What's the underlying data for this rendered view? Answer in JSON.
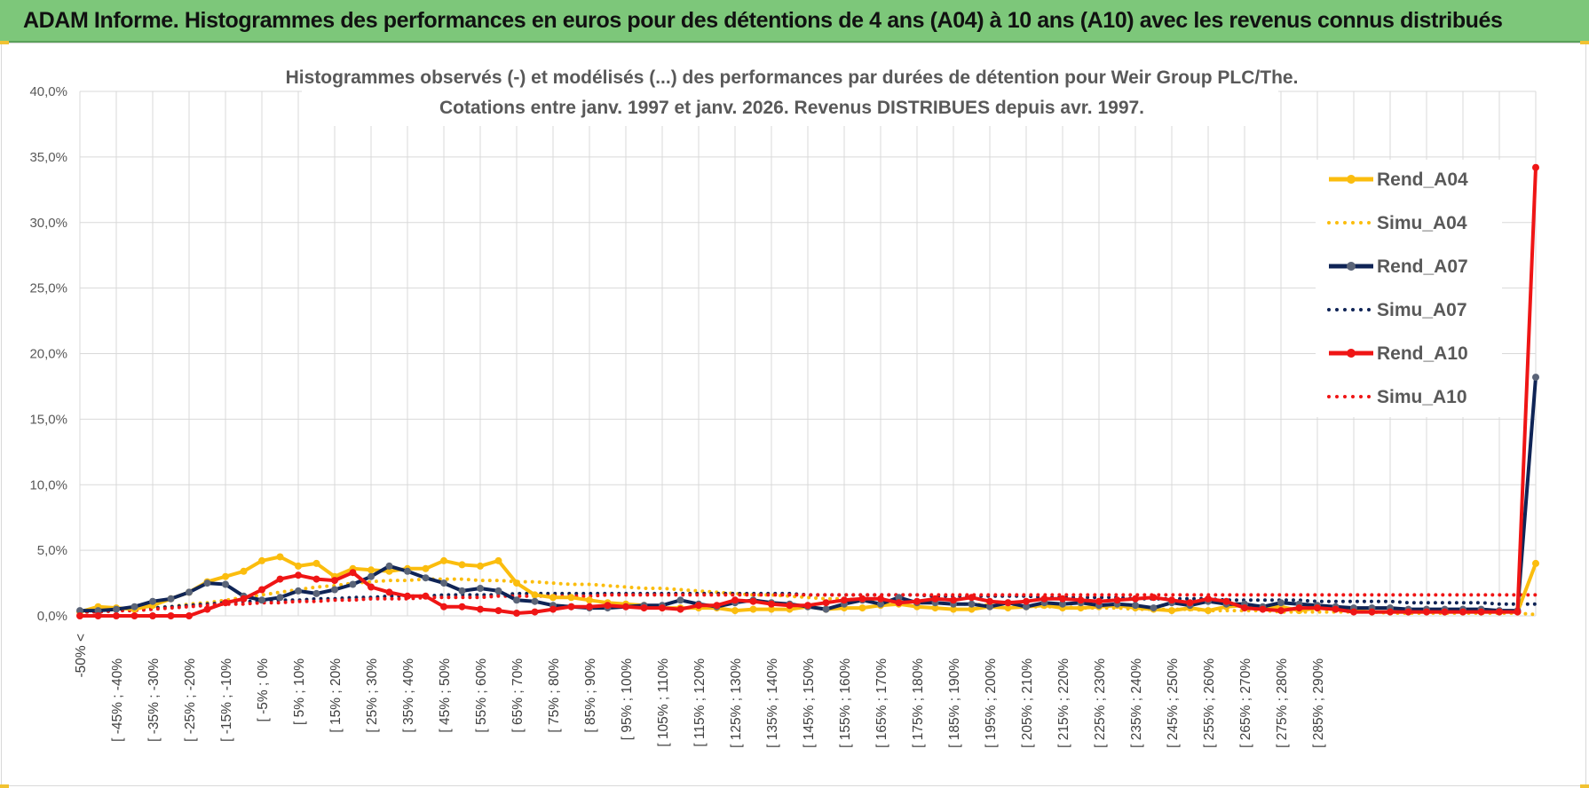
{
  "header": {
    "title": "ADAM Informe. Histogrammes des performances en euros pour des détentions de 4 ans (A04) à 10 ans (A10) avec les revenus connus distribués"
  },
  "colors": {
    "banner_bg": "#7dc77a",
    "a04": "#fbbd0e",
    "a07": "#0f2456",
    "a07_marker": "#5a6478",
    "a10": "#ef1515"
  },
  "chart_data": {
    "type": "line",
    "title_line1": "Histogrammes observés (-) et modélisés (...) des performances par durées de détention pour Weir Group PLC/The.",
    "title_line2": "Cotations entre janv. 1997 et janv. 2026. Revenus DISTRIBUES depuis avr. 1997.",
    "ylim": [
      0,
      40
    ],
    "y_ticks": [
      "0,0%",
      "5,0%",
      "10,0%",
      "15,0%",
      "20,0%",
      "25,0%",
      "30,0%",
      "35,0%",
      "40,0%"
    ],
    "grid": true,
    "legend_position": "right",
    "x_labels": [
      "-50% <",
      "[ -45% ; -40%",
      "[ -35% ; -30%",
      "[ -25% ; -20%",
      "[ -15% ; -10%",
      "[ -5% ; 0%",
      "[ 5% ; 10%",
      "[ 15% ; 20%",
      "[ 25% ; 30%",
      "[ 35% ; 40%",
      "[ 45% ; 50%",
      "[ 55% ; 60%",
      "[ 65% ; 70%",
      "[ 75% ; 80%",
      "[ 85% ; 90%",
      "[ 95% ; 100%",
      "[ 105% ; 110%",
      "[ 115% ; 120%",
      "[ 125% ; 130%",
      "[ 135% ; 140%",
      "[ 145% ; 150%",
      "[ 155% ; 160%",
      "[ 165% ; 170%",
      "[ 175% ; 180%",
      "[ 185% ; 190%",
      "[ 195% ; 200%",
      "[ 205% ; 210%",
      "[ 215% ; 220%",
      "[ 225% ; 230%",
      "[ 235% ; 240%",
      "[ 245% ; 250%",
      "[ 255% ; 260%",
      "[ 265% ; 270%",
      "[ 275% ; 280%",
      "[ 285% ; 290%"
    ],
    "series": [
      {
        "name": "Rend_A04",
        "style": "solid",
        "color": "#fbbd0e",
        "values": [
          0.3,
          0.7,
          0.6,
          0.5,
          0.8,
          1.3,
          1.8,
          2.6,
          3.0,
          3.4,
          4.2,
          4.5,
          3.8,
          4.0,
          3.0,
          3.6,
          3.5,
          3.4,
          3.6,
          3.6,
          4.2,
          3.9,
          3.8,
          4.2,
          2.5,
          1.6,
          1.4,
          1.4,
          1.2,
          1.0,
          0.9,
          0.8,
          0.6,
          0.6,
          0.6,
          0.6,
          0.4,
          0.5,
          0.5,
          0.5,
          0.7,
          0.5,
          0.6,
          0.6,
          0.8,
          0.9,
          0.7,
          0.6,
          0.5,
          0.5,
          0.7,
          0.6,
          0.7,
          0.8,
          0.6,
          0.6,
          0.7,
          0.8,
          0.6,
          0.5,
          0.4,
          0.6,
          0.4,
          0.7,
          0.8,
          0.6,
          0.7,
          0.4,
          0.6,
          0.5,
          0.4,
          0.3,
          0.3,
          0.3,
          0.3,
          0.3,
          0.3,
          0.3,
          0.3,
          0.3,
          4.0
        ]
      },
      {
        "name": "Simu_A04",
        "style": "dotted",
        "color": "#fbbd0e",
        "values": [
          0.3,
          0.3,
          0.4,
          0.5,
          0.6,
          0.7,
          0.9,
          1.0,
          1.2,
          1.4,
          1.6,
          1.8,
          2.0,
          2.2,
          2.3,
          2.5,
          2.6,
          2.7,
          2.7,
          2.8,
          2.8,
          2.8,
          2.7,
          2.7,
          2.6,
          2.6,
          2.5,
          2.4,
          2.4,
          2.3,
          2.2,
          2.1,
          2.1,
          2.0,
          1.9,
          1.8,
          1.7,
          1.6,
          1.6,
          1.5,
          1.4,
          1.3,
          1.3,
          1.2,
          1.1,
          1.1,
          1.0,
          1.0,
          0.9,
          0.9,
          0.8,
          0.8,
          0.7,
          0.7,
          0.7,
          0.6,
          0.6,
          0.6,
          0.5,
          0.5,
          0.5,
          0.5,
          0.4,
          0.4,
          0.4,
          0.4,
          0.3,
          0.3,
          0.3,
          0.3,
          0.3,
          0.3,
          0.2,
          0.2,
          0.2,
          0.2,
          0.2,
          0.2,
          0.2,
          0.2,
          0.1
        ]
      },
      {
        "name": "Rend_A07",
        "style": "solid",
        "color": "#0f2456",
        "values": [
          0.4,
          0.4,
          0.5,
          0.7,
          1.1,
          1.3,
          1.8,
          2.5,
          2.4,
          1.5,
          1.2,
          1.4,
          1.9,
          1.7,
          2.0,
          2.4,
          3.0,
          3.8,
          3.4,
          2.9,
          2.5,
          1.9,
          2.1,
          1.9,
          1.2,
          1.1,
          0.8,
          0.7,
          0.6,
          0.6,
          0.7,
          0.8,
          0.8,
          1.2,
          0.9,
          0.7,
          1.0,
          1.2,
          1.0,
          0.9,
          0.7,
          0.5,
          0.9,
          1.2,
          0.9,
          1.4,
          1.0,
          1.0,
          0.9,
          0.9,
          0.7,
          1.0,
          0.7,
          1.0,
          0.9,
          1.0,
          0.8,
          0.9,
          0.8,
          0.6,
          1.0,
          0.8,
          1.1,
          0.9,
          0.9,
          0.7,
          1.0,
          0.9,
          0.8,
          0.7,
          0.6,
          0.6,
          0.6,
          0.5,
          0.5,
          0.5,
          0.5,
          0.5,
          0.4,
          0.4,
          18.2
        ]
      },
      {
        "name": "Simu_A07",
        "style": "dotted",
        "color": "#0f2456",
        "values": [
          0.3,
          0.3,
          0.4,
          0.5,
          0.6,
          0.7,
          0.8,
          0.9,
          1.0,
          1.1,
          1.1,
          1.2,
          1.2,
          1.3,
          1.3,
          1.4,
          1.4,
          1.5,
          1.5,
          1.5,
          1.6,
          1.6,
          1.6,
          1.6,
          1.7,
          1.7,
          1.7,
          1.7,
          1.7,
          1.7,
          1.7,
          1.7,
          1.7,
          1.7,
          1.7,
          1.7,
          1.7,
          1.7,
          1.7,
          1.7,
          1.6,
          1.6,
          1.6,
          1.6,
          1.6,
          1.6,
          1.6,
          1.5,
          1.5,
          1.5,
          1.5,
          1.5,
          1.5,
          1.4,
          1.4,
          1.4,
          1.4,
          1.4,
          1.3,
          1.3,
          1.3,
          1.3,
          1.3,
          1.2,
          1.2,
          1.2,
          1.2,
          1.2,
          1.1,
          1.1,
          1.1,
          1.1,
          1.1,
          1.0,
          1.0,
          1.0,
          1.0,
          1.0,
          0.9,
          0.9,
          0.9
        ]
      },
      {
        "name": "Rend_A10",
        "style": "solid",
        "color": "#ef1515",
        "values": [
          0.0,
          0.0,
          0.0,
          0.0,
          0.0,
          0.0,
          0.0,
          0.5,
          1.0,
          1.3,
          2.0,
          2.8,
          3.1,
          2.8,
          2.7,
          3.3,
          2.2,
          1.8,
          1.5,
          1.5,
          0.7,
          0.7,
          0.5,
          0.4,
          0.2,
          0.3,
          0.5,
          0.7,
          0.7,
          0.8,
          0.7,
          0.6,
          0.6,
          0.5,
          0.8,
          0.8,
          1.2,
          1.1,
          0.9,
          0.8,
          0.8,
          1.0,
          1.2,
          1.3,
          1.3,
          1.0,
          1.1,
          1.3,
          1.2,
          1.4,
          1.1,
          1.0,
          1.1,
          1.3,
          1.3,
          1.2,
          1.1,
          1.2,
          1.3,
          1.4,
          1.2,
          1.0,
          1.3,
          1.1,
          0.6,
          0.5,
          0.4,
          0.6,
          0.6,
          0.5,
          0.3,
          0.3,
          0.3,
          0.3,
          0.3,
          0.3,
          0.3,
          0.3,
          0.3,
          0.3,
          34.2
        ]
      },
      {
        "name": "Simu_A10",
        "style": "dotted",
        "color": "#ef1515",
        "values": [
          0.3,
          0.3,
          0.4,
          0.4,
          0.5,
          0.6,
          0.7,
          0.8,
          0.9,
          0.9,
          1.0,
          1.0,
          1.1,
          1.1,
          1.2,
          1.2,
          1.3,
          1.3,
          1.3,
          1.4,
          1.4,
          1.4,
          1.4,
          1.5,
          1.5,
          1.5,
          1.5,
          1.5,
          1.5,
          1.6,
          1.6,
          1.6,
          1.6,
          1.6,
          1.6,
          1.6,
          1.6,
          1.6,
          1.6,
          1.6,
          1.6,
          1.6,
          1.6,
          1.6,
          1.6,
          1.6,
          1.6,
          1.6,
          1.6,
          1.6,
          1.6,
          1.6,
          1.6,
          1.6,
          1.6,
          1.6,
          1.6,
          1.6,
          1.6,
          1.6,
          1.6,
          1.6,
          1.6,
          1.6,
          1.6,
          1.6,
          1.6,
          1.6,
          1.6,
          1.6,
          1.6,
          1.6,
          1.6,
          1.6,
          1.6,
          1.6,
          1.6,
          1.6,
          1.6,
          1.6,
          1.6
        ]
      }
    ]
  }
}
